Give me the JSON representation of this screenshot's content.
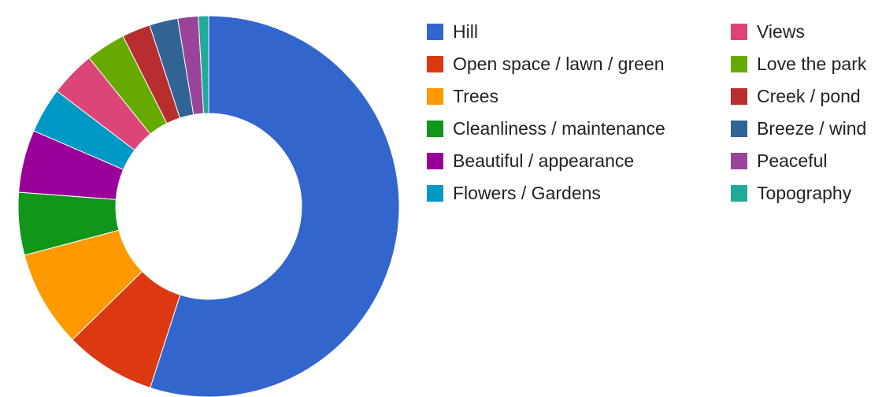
{
  "chart_data": {
    "type": "pie",
    "donut": true,
    "legend_position": "right",
    "series": [
      {
        "name": "Hill",
        "value": 57.0,
        "color": "#3366cc"
      },
      {
        "name": "Open space / lawn / green",
        "value": 8.0,
        "color": "#dc3912"
      },
      {
        "name": "Trees",
        "value": 8.5,
        "color": "#ff9900"
      },
      {
        "name": "Cleanliness / maintenance",
        "value": 5.5,
        "color": "#109618"
      },
      {
        "name": "Beautiful / appearance",
        "value": 5.5,
        "color": "#990099"
      },
      {
        "name": "Flowers / Gardens",
        "value": 4.0,
        "color": "#0099c6"
      },
      {
        "name": "Views",
        "value": 4.0,
        "color": "#dd4477"
      },
      {
        "name": "Love the park",
        "value": 3.5,
        "color": "#66aa00"
      },
      {
        "name": "Creek / pond",
        "value": 2.5,
        "color": "#b82e2e"
      },
      {
        "name": "Breeze / wind",
        "value": 2.5,
        "color": "#316395"
      },
      {
        "name": "Peaceful",
        "value": 1.8,
        "color": "#994499"
      },
      {
        "name": "Topography",
        "value": 0.9,
        "color": "#22aa99"
      }
    ]
  }
}
